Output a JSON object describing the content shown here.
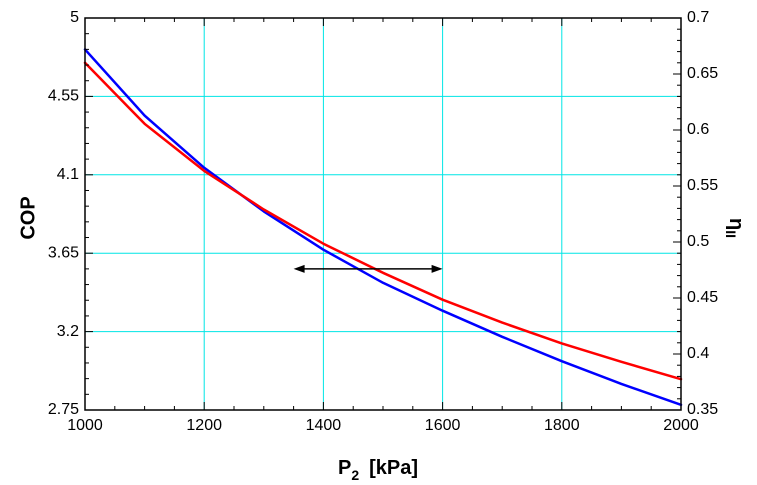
{
  "chart_data": {
    "type": "line",
    "title": "",
    "xlabel": {
      "main": "P",
      "subscript": "2",
      "unit": "[kPa]"
    },
    "ylabel_left": "COP",
    "ylabel_right": {
      "main": "η",
      "subscript": "II"
    },
    "xlim": [
      1000,
      2000
    ],
    "ylim_left": [
      2.75,
      5
    ],
    "ylim_right": [
      0.35,
      0.7
    ],
    "x_ticks": [
      1000,
      1200,
      1400,
      1600,
      1800,
      2000
    ],
    "x_tick_labels": [
      "1000",
      "1200",
      "1400",
      "1600",
      "1800",
      "2000"
    ],
    "y_left_ticks": [
      2.75,
      3.2,
      3.65,
      4.1,
      4.55,
      5
    ],
    "y_left_tick_labels": [
      "2.75",
      "3.2",
      "3.65",
      "4.1",
      "4.55",
      "5"
    ],
    "y_right_ticks": [
      0.35,
      0.4,
      0.45,
      0.5,
      0.55,
      0.6,
      0.65,
      0.7
    ],
    "y_right_tick_labels": [
      "0.35",
      "0.4",
      "0.45",
      "0.5",
      "0.55",
      "0.6",
      "0.65",
      "0.7"
    ],
    "grid": true,
    "series": [
      {
        "axis": "left",
        "color": "#0000ff",
        "x": [
          1000,
          1100,
          1200,
          1300,
          1400,
          1500,
          1600,
          1700,
          1800,
          1900,
          2000
        ],
        "values": [
          4.82,
          4.44,
          4.14,
          3.89,
          3.67,
          3.48,
          3.32,
          3.17,
          3.03,
          2.9,
          2.78
        ]
      },
      {
        "axis": "right",
        "color": "#ff0000",
        "x": [
          1000,
          1100,
          1200,
          1300,
          1400,
          1500,
          1600,
          1700,
          1800,
          1900,
          2000
        ],
        "values": [
          0.66,
          0.6055,
          0.5635,
          0.529,
          0.4985,
          0.4725,
          0.4485,
          0.428,
          0.4095,
          0.393,
          0.3775
        ]
      }
    ],
    "annotation": {
      "type": "double-arrow",
      "x_start": 1350,
      "x_end": 1600,
      "y_left": 3.56
    },
    "colors": {
      "grid": "#00e5e5",
      "frame": "#000000"
    }
  }
}
